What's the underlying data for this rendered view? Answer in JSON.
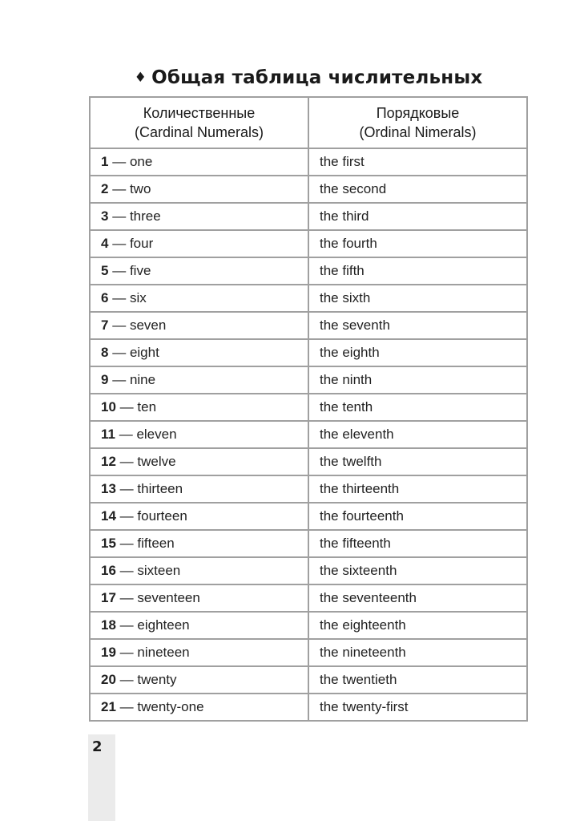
{
  "title": "Общая таблица числительных",
  "title_bullet": "♦",
  "table": {
    "headers": [
      {
        "line1": "Количественные",
        "line2": "(Cardinal Numerals)"
      },
      {
        "line1": "Порядковые",
        "line2": "(Ordinal Nimerals)"
      }
    ],
    "dash": "—",
    "rows": [
      {
        "num": "1",
        "cardinal": "one",
        "ordinal": "the first"
      },
      {
        "num": "2",
        "cardinal": "two",
        "ordinal": "the second"
      },
      {
        "num": "3",
        "cardinal": "three",
        "ordinal": "the third"
      },
      {
        "num": "4",
        "cardinal": "four",
        "ordinal": "the fourth"
      },
      {
        "num": "5",
        "cardinal": "five",
        "ordinal": "the fifth"
      },
      {
        "num": "6",
        "cardinal": "six",
        "ordinal": "the sixth"
      },
      {
        "num": "7",
        "cardinal": "seven",
        "ordinal": "the seventh"
      },
      {
        "num": "8",
        "cardinal": "eight",
        "ordinal": "the eighth"
      },
      {
        "num": "9",
        "cardinal": "nine",
        "ordinal": "the ninth"
      },
      {
        "num": "10",
        "cardinal": "ten",
        "ordinal": "the tenth"
      },
      {
        "num": "11",
        "cardinal": "eleven",
        "ordinal": "the eleventh"
      },
      {
        "num": "12",
        "cardinal": "twelve",
        "ordinal": "the twelfth"
      },
      {
        "num": "13",
        "cardinal": "thirteen",
        "ordinal": "the thirteenth"
      },
      {
        "num": "14",
        "cardinal": "fourteen",
        "ordinal": "the fourteenth"
      },
      {
        "num": "15",
        "cardinal": "fifteen",
        "ordinal": "the fifteenth"
      },
      {
        "num": "16",
        "cardinal": "sixteen",
        "ordinal": "the sixteenth"
      },
      {
        "num": "17",
        "cardinal": "seventeen",
        "ordinal": "the seventeenth"
      },
      {
        "num": "18",
        "cardinal": "eighteen",
        "ordinal": "the eighteenth"
      },
      {
        "num": "19",
        "cardinal": "nineteen",
        "ordinal": "the nineteenth"
      },
      {
        "num": "20",
        "cardinal": "twenty",
        "ordinal": "the twentieth"
      },
      {
        "num": "21",
        "cardinal": "twenty-one",
        "ordinal": "the twenty-first"
      }
    ]
  },
  "page_number": "2"
}
